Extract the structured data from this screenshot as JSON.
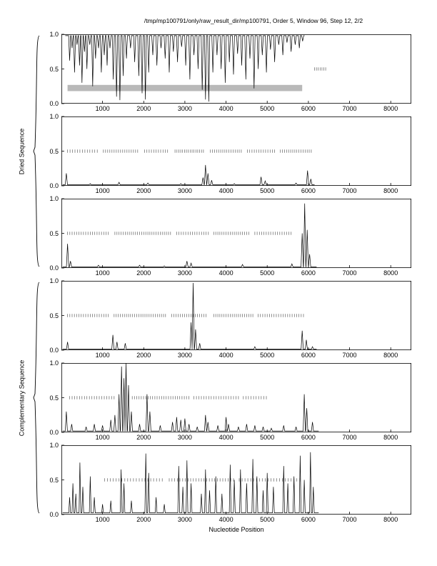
{
  "page": {
    "title": "/tmp/mp100791/only/raw_result_dir/mp100791, Order 5, Window 96, Step 12, 2/2",
    "xlabel": "Nucleotide Position"
  },
  "groups": [
    {
      "label": "Dried Sequence"
    },
    {
      "label": "Complementary Sequence"
    }
  ],
  "axes": {
    "xlim": [
      0,
      8500
    ],
    "ylim": [
      0,
      1
    ],
    "xticks": [
      1000,
      2000,
      3000,
      4000,
      5000,
      6000,
      7000,
      8000
    ],
    "ytick_labels": [
      "1.0",
      "0.5",
      "0.0"
    ],
    "ytick_values": [
      1.0,
      0.5,
      0.0
    ]
  },
  "chart_data": [
    {
      "id": "dried-1",
      "type": "line",
      "group": "Dried Sequence",
      "baseline": 0.98,
      "spike_halfwidth": 25,
      "x_start": 95,
      "x_end": 5905,
      "spikes": [
        [
          200,
          0.62
        ],
        [
          260,
          0.8
        ],
        [
          320,
          0.45
        ],
        [
          380,
          0.85
        ],
        [
          440,
          0.55
        ],
        [
          500,
          0.3
        ],
        [
          560,
          0.75
        ],
        [
          620,
          0.5
        ],
        [
          690,
          0.85
        ],
        [
          760,
          0.25
        ],
        [
          830,
          0.65
        ],
        [
          900,
          0.8
        ],
        [
          970,
          0.45
        ],
        [
          1040,
          0.7
        ],
        [
          1110,
          0.55
        ],
        [
          1180,
          0.8
        ],
        [
          1260,
          0.35
        ],
        [
          1340,
          0.1
        ],
        [
          1420,
          0.05
        ],
        [
          1500,
          0.4
        ],
        [
          1580,
          0.65
        ],
        [
          1680,
          0.8
        ],
        [
          1780,
          0.6
        ],
        [
          1880,
          0.4
        ],
        [
          1960,
          0.15
        ],
        [
          2040,
          0.06
        ],
        [
          2120,
          0.45
        ],
        [
          2220,
          0.7
        ],
        [
          2320,
          0.55
        ],
        [
          2420,
          0.8
        ],
        [
          2520,
          0.65
        ],
        [
          2620,
          0.45
        ],
        [
          2720,
          0.75
        ],
        [
          2820,
          0.6
        ],
        [
          2920,
          0.82
        ],
        [
          3020,
          0.55
        ],
        [
          3120,
          0.35
        ],
        [
          3220,
          0.7
        ],
        [
          3320,
          0.5
        ],
        [
          3420,
          0.2
        ],
        [
          3500,
          0.06
        ],
        [
          3580,
          0.03
        ],
        [
          3680,
          0.45
        ],
        [
          3780,
          0.7
        ],
        [
          3880,
          0.5
        ],
        [
          3980,
          0.3
        ],
        [
          4080,
          0.6
        ],
        [
          4180,
          0.42
        ],
        [
          4280,
          0.72
        ],
        [
          4380,
          0.55
        ],
        [
          4480,
          0.35
        ],
        [
          4580,
          0.65
        ],
        [
          4680,
          0.22
        ],
        [
          4780,
          0.5
        ],
        [
          4880,
          0.7
        ],
        [
          4980,
          0.45
        ],
        [
          5080,
          0.78
        ],
        [
          5180,
          0.6
        ],
        [
          5280,
          0.85
        ],
        [
          5380,
          0.7
        ],
        [
          5480,
          0.88
        ],
        [
          5580,
          0.75
        ],
        [
          5680,
          0.85
        ],
        [
          5780,
          0.8
        ],
        [
          5860,
          0.9
        ]
      ],
      "dash_y": 0.5,
      "dash_segments": [
        [
          6150,
          6420,
          45
        ]
      ],
      "band": {
        "x0": 150,
        "x1": 5850,
        "y0": 0.18,
        "y1": 0.27,
        "color": "#b9b9b9"
      }
    },
    {
      "id": "dried-2",
      "type": "line",
      "group": "Dried Sequence",
      "baseline": 0.015,
      "spike_halfwidth": 28,
      "x_start": 30,
      "x_end": 6150,
      "spikes": [
        [
          120,
          0.18
        ],
        [
          700,
          0.03
        ],
        [
          1400,
          0.05
        ],
        [
          2100,
          0.04
        ],
        [
          2900,
          0.03
        ],
        [
          3440,
          0.12
        ],
        [
          3500,
          0.3
        ],
        [
          3560,
          0.18
        ],
        [
          3650,
          0.08
        ],
        [
          4200,
          0.03
        ],
        [
          4850,
          0.13
        ],
        [
          4950,
          0.07
        ],
        [
          5700,
          0.04
        ],
        [
          5980,
          0.22
        ],
        [
          6060,
          0.1
        ]
      ],
      "dash_y": 0.5,
      "dash_segments": [
        [
          150,
          900,
          60
        ],
        [
          1020,
          1900,
          52
        ],
        [
          2020,
          2620,
          56
        ],
        [
          2760,
          3480,
          46
        ],
        [
          3620,
          4400,
          50
        ],
        [
          4520,
          5180,
          55
        ],
        [
          5320,
          6100,
          50
        ]
      ]
    },
    {
      "id": "dried-3",
      "type": "line",
      "group": "Dried Sequence",
      "baseline": 0.015,
      "spike_halfwidth": 28,
      "x_start": 30,
      "x_end": 6200,
      "spikes": [
        [
          150,
          0.35
        ],
        [
          220,
          0.1
        ],
        [
          900,
          0.04
        ],
        [
          1900,
          0.04
        ],
        [
          2500,
          0.03
        ],
        [
          3050,
          0.1
        ],
        [
          3150,
          0.07
        ],
        [
          4400,
          0.05
        ],
        [
          5600,
          0.06
        ],
        [
          5850,
          0.5
        ],
        [
          5910,
          0.93
        ],
        [
          5970,
          0.55
        ],
        [
          6030,
          0.2
        ]
      ],
      "dash_y": 0.5,
      "dash_segments": [
        [
          150,
          1180,
          55
        ],
        [
          1300,
          2680,
          50
        ],
        [
          2800,
          3580,
          55
        ],
        [
          3700,
          4580,
          50
        ],
        [
          4700,
          5600,
          55
        ]
      ]
    },
    {
      "id": "comp-1",
      "type": "line",
      "group": "Complementary Sequence",
      "baseline": 0.015,
      "spike_halfwidth": 26,
      "x_start": 30,
      "x_end": 6200,
      "spikes": [
        [
          150,
          0.12
        ],
        [
          1250,
          0.22
        ],
        [
          1350,
          0.12
        ],
        [
          1550,
          0.1
        ],
        [
          3150,
          0.4
        ],
        [
          3200,
          0.97
        ],
        [
          3260,
          0.3
        ],
        [
          3360,
          0.1
        ],
        [
          4700,
          0.05
        ],
        [
          5850,
          0.28
        ],
        [
          5950,
          0.15
        ],
        [
          6100,
          0.05
        ]
      ],
      "dash_y": 0.5,
      "dash_segments": [
        [
          150,
          1150,
          55
        ],
        [
          1280,
          2550,
          50
        ],
        [
          2680,
          3560,
          52
        ],
        [
          3700,
          4650,
          50
        ],
        [
          4780,
          5900,
          55
        ]
      ]
    },
    {
      "id": "comp-2",
      "type": "line",
      "group": "Complementary Sequence",
      "baseline": 0.02,
      "spike_halfwidth": 26,
      "x_start": 30,
      "x_end": 6250,
      "spikes": [
        [
          120,
          0.3
        ],
        [
          250,
          0.12
        ],
        [
          600,
          0.08
        ],
        [
          800,
          0.12
        ],
        [
          1000,
          0.1
        ],
        [
          1200,
          0.18
        ],
        [
          1300,
          0.25
        ],
        [
          1400,
          0.55
        ],
        [
          1460,
          0.95
        ],
        [
          1520,
          0.78
        ],
        [
          1570,
          1.0
        ],
        [
          1630,
          0.68
        ],
        [
          1700,
          0.3
        ],
        [
          1900,
          0.12
        ],
        [
          2080,
          0.55
        ],
        [
          2150,
          0.3
        ],
        [
          2400,
          0.1
        ],
        [
          2700,
          0.15
        ],
        [
          2800,
          0.22
        ],
        [
          2900,
          0.18
        ],
        [
          3000,
          0.2
        ],
        [
          3100,
          0.12
        ],
        [
          3300,
          0.08
        ],
        [
          3500,
          0.25
        ],
        [
          3560,
          0.15
        ],
        [
          3800,
          0.1
        ],
        [
          4000,
          0.22
        ],
        [
          4060,
          0.12
        ],
        [
          4300,
          0.08
        ],
        [
          4500,
          0.12
        ],
        [
          4700,
          0.1
        ],
        [
          4900,
          0.08
        ],
        [
          5100,
          0.06
        ],
        [
          5400,
          0.1
        ],
        [
          5700,
          0.08
        ],
        [
          5900,
          0.55
        ],
        [
          5960,
          0.35
        ],
        [
          6100,
          0.15
        ]
      ],
      "dash_y": 0.5,
      "dash_segments": [
        [
          200,
          1300,
          60
        ],
        [
          1720,
          3100,
          55
        ],
        [
          3220,
          4300,
          60
        ],
        [
          4420,
          5000,
          62
        ]
      ]
    },
    {
      "id": "comp-3",
      "type": "line",
      "group": "Complementary Sequence",
      "baseline": 0.025,
      "spike_halfwidth": 22,
      "x_start": 30,
      "x_end": 6250,
      "spikes": [
        [
          200,
          0.25
        ],
        [
          280,
          0.45
        ],
        [
          350,
          0.3
        ],
        [
          450,
          0.75
        ],
        [
          520,
          0.4
        ],
        [
          700,
          0.55
        ],
        [
          800,
          0.25
        ],
        [
          1000,
          0.15
        ],
        [
          1200,
          0.2
        ],
        [
          1450,
          0.65
        ],
        [
          1520,
          0.45
        ],
        [
          1700,
          0.2
        ],
        [
          2050,
          0.88
        ],
        [
          2120,
          0.6
        ],
        [
          2300,
          0.25
        ],
        [
          2500,
          0.15
        ],
        [
          2850,
          0.7
        ],
        [
          2950,
          0.4
        ],
        [
          3050,
          0.78
        ],
        [
          3150,
          0.45
        ],
        [
          3400,
          0.3
        ],
        [
          3500,
          0.65
        ],
        [
          3600,
          0.35
        ],
        [
          3750,
          0.55
        ],
        [
          3900,
          0.3
        ],
        [
          4100,
          0.72
        ],
        [
          4200,
          0.5
        ],
        [
          4350,
          0.65
        ],
        [
          4500,
          0.45
        ],
        [
          4650,
          0.8
        ],
        [
          4750,
          0.55
        ],
        [
          4900,
          0.35
        ],
        [
          5000,
          0.6
        ],
        [
          5150,
          0.4
        ],
        [
          5400,
          0.7
        ],
        [
          5500,
          0.45
        ],
        [
          5650,
          0.55
        ],
        [
          5800,
          0.85
        ],
        [
          5900,
          0.5
        ],
        [
          6050,
          0.9
        ],
        [
          6120,
          0.4
        ]
      ],
      "dash_y": 0.5,
      "dash_segments": [
        [
          1050,
          2500,
          70
        ],
        [
          2620,
          4200,
          65
        ],
        [
          4320,
          5800,
          70
        ]
      ]
    }
  ]
}
